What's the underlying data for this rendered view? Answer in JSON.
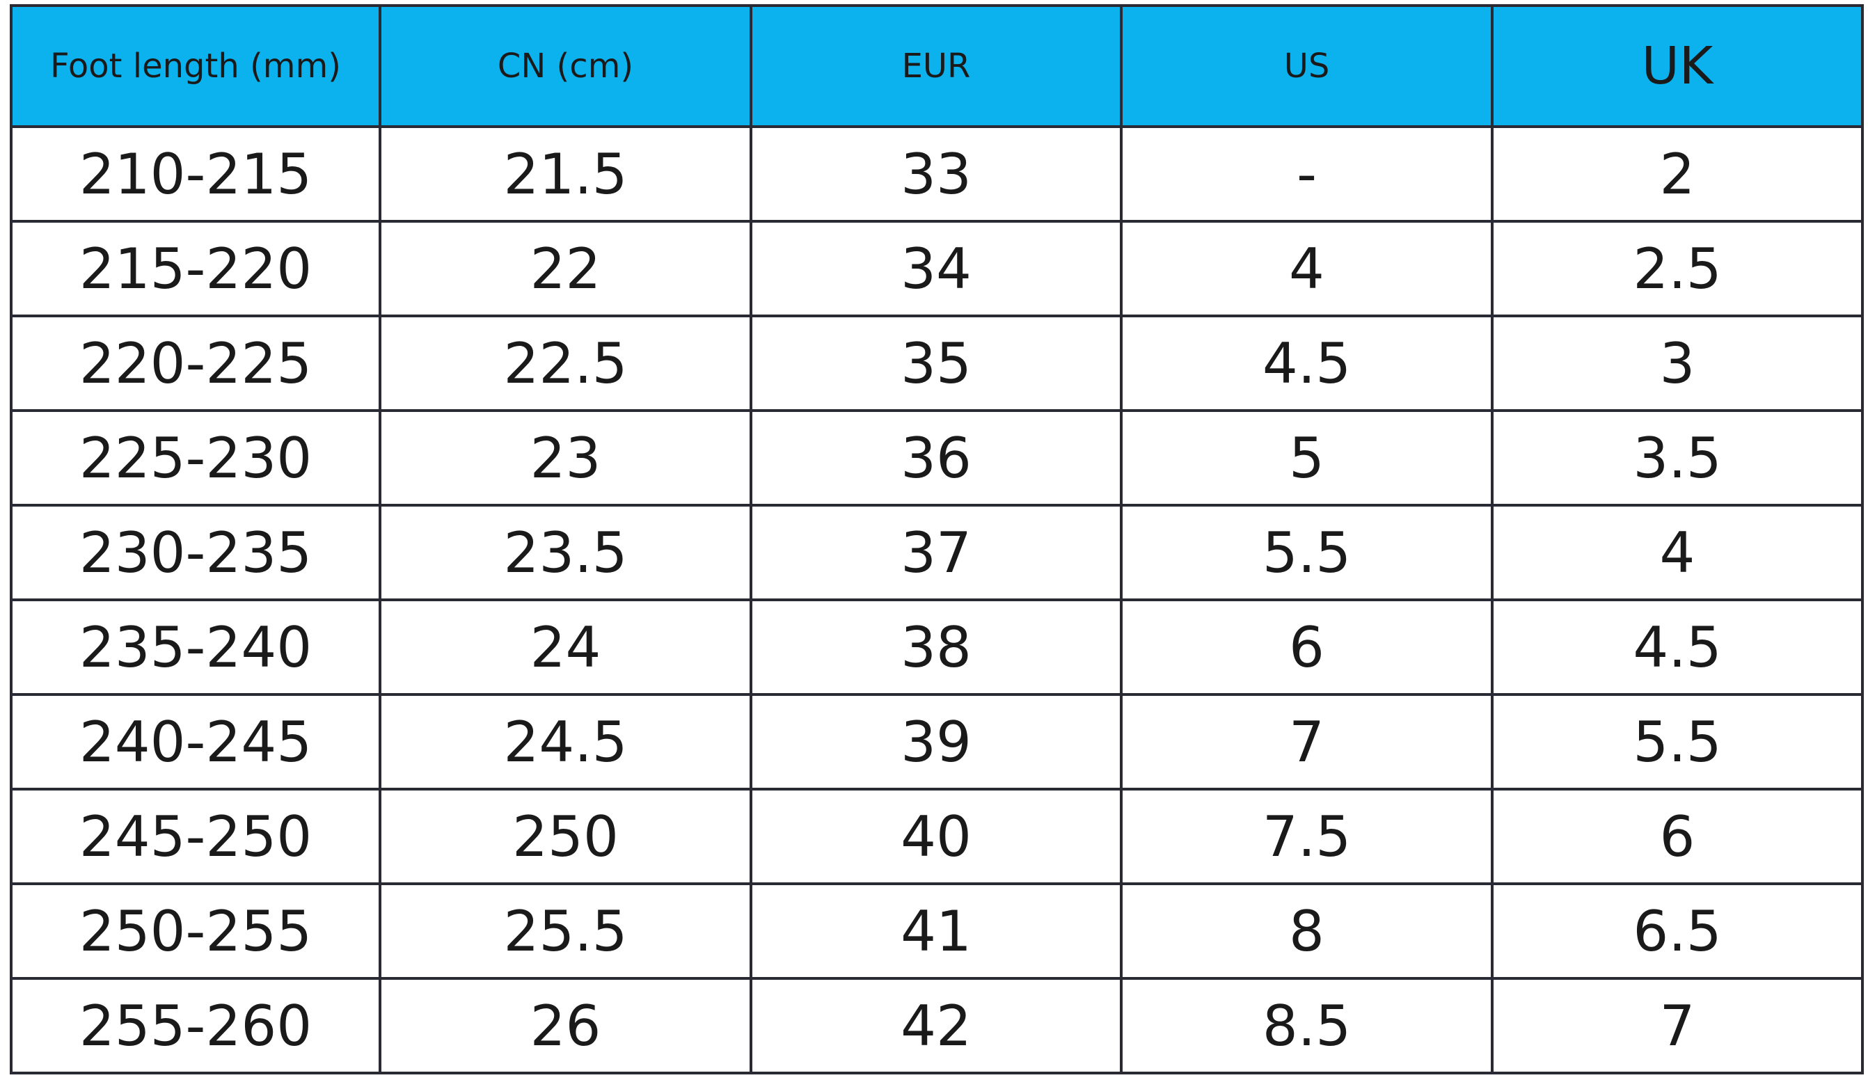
{
  "table": {
    "headers": [
      "Foot length (mm)",
      "CN (cm)",
      "EUR",
      "US",
      "UK"
    ],
    "rows": [
      [
        "210-215",
        "21.5",
        "33",
        "-",
        "2"
      ],
      [
        "215-220",
        "22",
        "34",
        "4",
        "2.5"
      ],
      [
        "220-225",
        "22.5",
        "35",
        "4.5",
        "3"
      ],
      [
        "225-230",
        "23",
        "36",
        "5",
        "3.5"
      ],
      [
        "230-235",
        "23.5",
        "37",
        "5.5",
        "4"
      ],
      [
        "235-240",
        "24",
        "38",
        "6",
        "4.5"
      ],
      [
        "240-245",
        "24.5",
        "39",
        "7",
        "5.5"
      ],
      [
        "245-250",
        "250",
        "40",
        "7.5",
        "6"
      ],
      [
        "250-255",
        "25.5",
        "41",
        "8",
        "6.5"
      ],
      [
        "255-260",
        "26",
        "42",
        "8.5",
        "7"
      ]
    ]
  }
}
